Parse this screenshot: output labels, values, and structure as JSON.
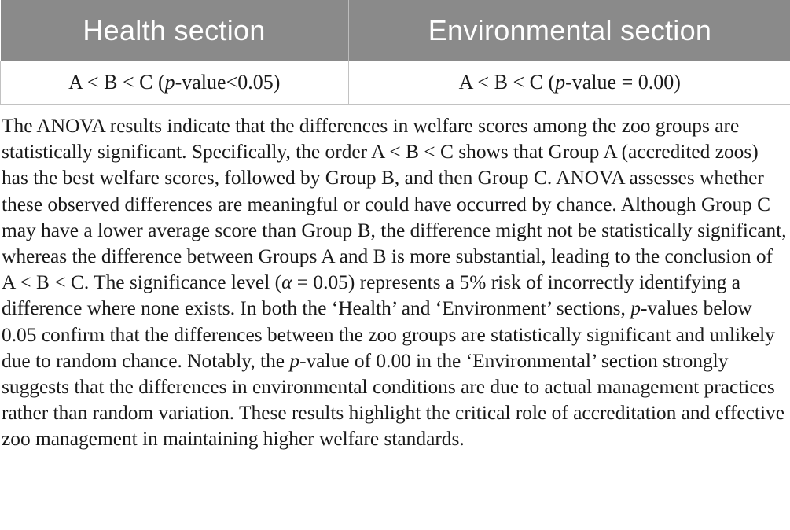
{
  "table": {
    "headers": [
      "Health section",
      "Environmental section"
    ],
    "rows": [
      {
        "health": {
          "prefix": "A < B < C (",
          "pvar": "p",
          "suffix": "-value<0.05)"
        },
        "environmental": {
          "prefix": "A < B < C (",
          "pvar": "p",
          "suffix": "-value = 0.00)"
        }
      }
    ]
  },
  "paragraph": {
    "s1": "The ANOVA results indicate that the differences in welfare scores among the zoo groups are statistically significant. Specifically, the order A < B < C shows that Group A (accredited zoos) has the best welfare scores, followed by Group B, and then Group C. ANOVA assesses whether these observed differences are meaningful or could have occurred by chance. Although Group C may have a lower average score than Group B, the difference might not be statistically significant, whereas the difference between Groups A and B is more substantial, leading to the conclusion of A < B < C. The significance level (",
    "alpha": "α",
    "s2": " = 0.05) represents a 5% risk of incorrectly identifying a difference where none exists. In both the ‘Health’ and ‘Environment’ sections, ",
    "p1": "p",
    "s3": "-values below 0.05 confirm that the differences between the zoo groups are statistically significant and unlikely due to random chance. Notably, the ",
    "p2": "p",
    "s4": "-value of 0.00 in the ‘Environmental’ section strongly suggests that the differences in environmental conditions are due to actual management practices rather than random variation. These results highlight the critical role of accreditation and effective zoo management in maintaining higher welfare standards."
  }
}
